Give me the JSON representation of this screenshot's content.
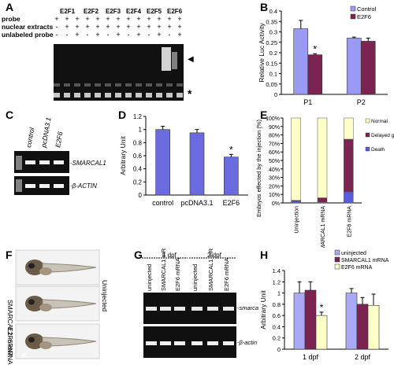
{
  "panels": {
    "A": {
      "letter": "A",
      "groups": [
        "E2F1",
        "E2F2",
        "E2F3",
        "E2F4",
        "E2F5",
        "E2F6"
      ],
      "row_labels": [
        "probe",
        "nuclear extracts",
        "unlabeled probe"
      ],
      "row_probe": [
        "+",
        "+",
        "+",
        "+",
        "+",
        "+",
        "+",
        "+",
        "+",
        "+",
        "+",
        "+",
        "+"
      ],
      "row_extracts": [
        "-",
        "+",
        "+",
        "+",
        "+",
        "+",
        "+",
        "+",
        "+",
        "+",
        "+",
        "+",
        "+"
      ],
      "row_unlabeled": [
        "-",
        "-",
        "+",
        "-",
        "+",
        "-",
        "+",
        "-",
        "+",
        "-",
        "+",
        "-",
        "+"
      ],
      "markers": {
        "triangle": "◀",
        "star": "*"
      }
    },
    "B": {
      "letter": "B"
    },
    "C": {
      "letter": "C",
      "lanes": [
        "control",
        "pcDNA3.1",
        "E2F6"
      ],
      "bands": [
        "-SMARCAL1",
        "-β-ACTIN"
      ]
    },
    "D": {
      "letter": "D"
    },
    "E": {
      "letter": "E"
    },
    "F": {
      "letter": "F",
      "labels": [
        "Uninjected",
        "SMARCAL1 mRNA",
        "E2F6 mRNA"
      ]
    },
    "G": {
      "letter": "G",
      "timepoints": [
        "1 dpf",
        "2 dpf"
      ],
      "lanes": [
        "uninjected",
        "SMARCAL1 mRNA",
        "E2F6 mRNA",
        "uninjected",
        "SMARCAL1 mRNA",
        "E2F6 mRNA"
      ],
      "bands": [
        "-smarcal1",
        "-β-actin"
      ]
    },
    "H": {
      "letter": "H"
    }
  },
  "chart_data": [
    {
      "id": "B",
      "type": "bar",
      "categories": [
        "P1",
        "P2"
      ],
      "series": [
        {
          "name": "Control",
          "values": [
            0.315,
            0.27
          ],
          "errors": [
            0.04,
            0.005
          ],
          "color": "#9a9af5"
        },
        {
          "name": "E2F6",
          "values": [
            0.19,
            0.255
          ],
          "errors": [
            0.005,
            0.015
          ],
          "color": "#7b2452"
        }
      ],
      "ylabel": "Relative Luc Activity",
      "ylim": [
        0,
        0.4
      ],
      "yticks": [
        "0",
        "0.05",
        "0.1",
        "0.15",
        "0.2",
        "0.25",
        "0.3",
        "0.35",
        "0.4"
      ],
      "annotations": [
        {
          "category": "P1",
          "series": "E2F6",
          "text": "*"
        }
      ],
      "legend": "top-right"
    },
    {
      "id": "D",
      "type": "bar",
      "categories": [
        "control",
        "pcDNA3.1",
        "E2F6"
      ],
      "values": [
        1.0,
        0.95,
        0.58
      ],
      "errors": [
        0.05,
        0.05,
        0.04
      ],
      "color": "#6b6be0",
      "ylabel": "Arbitrary Unit",
      "ylim": [
        0,
        1.2
      ],
      "yticks": [
        "0",
        "0.2",
        "0.4",
        "0.6",
        "0.8",
        "1",
        "1.2"
      ],
      "annotations": [
        {
          "category": "E2F6",
          "text": "*"
        }
      ]
    },
    {
      "id": "E",
      "type": "bar",
      "stacked": true,
      "categories": [
        "Uninjection",
        "SMARCAL1 mRNA",
        "E2F6 mRNA"
      ],
      "series": [
        {
          "name": "Death",
          "values": [
            2,
            1,
            13
          ],
          "color": "#5b5be0"
        },
        {
          "name": "Delayed growth",
          "values": [
            1,
            5,
            62
          ],
          "color": "#7b2452"
        },
        {
          "name": "Normal",
          "values": [
            97,
            94,
            25
          ],
          "color": "#ffffc8"
        }
      ],
      "ylabel": "Embryos effected by the injection (%)",
      "ylim": [
        0,
        100
      ],
      "yticks": [
        "0%",
        "10%",
        "20%",
        "30%",
        "40%",
        "50%",
        "60%",
        "70%",
        "80%",
        "90%",
        "100%"
      ],
      "legend": "right"
    },
    {
      "id": "H",
      "type": "bar",
      "categories": [
        "1 dpf",
        "2 dpf"
      ],
      "series": [
        {
          "name": "uninjected",
          "values": [
            1.0,
            1.0
          ],
          "errors": [
            0.2,
            0.08
          ],
          "color": "#a9a9f5"
        },
        {
          "name": "SMARCAL1 mRNA",
          "values": [
            1.05,
            0.8
          ],
          "errors": [
            0.15,
            0.12
          ],
          "color": "#7b2452"
        },
        {
          "name": "E2F6 mRNA",
          "values": [
            0.6,
            0.78
          ],
          "errors": [
            0.06,
            0.2
          ],
          "color": "#ffffc8"
        }
      ],
      "ylabel": "Arbitrary Unit",
      "ylim": [
        0,
        1.4
      ],
      "yticks": [
        "0",
        "0.2",
        "0.4",
        "0.6",
        "0.8",
        "1",
        "1.2",
        "1.4"
      ],
      "annotations": [
        {
          "category": "1 dpf",
          "series": "E2F6 mRNA",
          "text": "*"
        }
      ],
      "legend": "top-right"
    }
  ]
}
